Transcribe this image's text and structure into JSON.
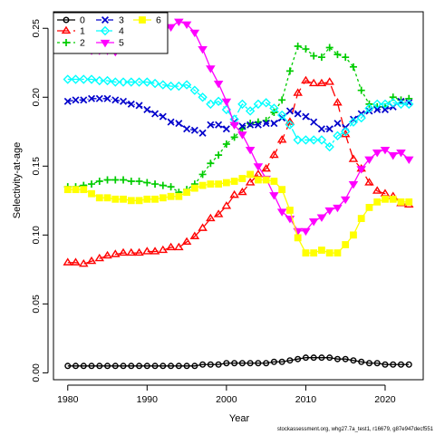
{
  "chart_data": {
    "type": "line",
    "xlabel": "Year",
    "ylabel": "Selectivity-at-age",
    "xlim": [
      1978.2,
      2024.8
    ],
    "ylim": [
      -0.005,
      0.262
    ],
    "xticks": [
      1980,
      1990,
      2000,
      2010,
      2020
    ],
    "yticks": [
      0.0,
      0.05,
      0.1,
      0.15,
      0.2,
      0.25
    ],
    "ytick_labels": [
      "0.00",
      "0.05",
      "0.10",
      "0.15",
      "0.20",
      "0.25"
    ],
    "grid": false,
    "legend_position": "top-left",
    "footnote": "stockassessment.org, whg27.7a_test1, r16679, g87e947decf551",
    "x": [
      1980,
      1981,
      1982,
      1983,
      1984,
      1985,
      1986,
      1987,
      1988,
      1989,
      1990,
      1991,
      1992,
      1993,
      1994,
      1995,
      1996,
      1997,
      1998,
      1999,
      2000,
      2001,
      2002,
      2003,
      2004,
      2005,
      2006,
      2007,
      2008,
      2009,
      2010,
      2011,
      2012,
      2013,
      2014,
      2015,
      2016,
      2017,
      2018,
      2019,
      2020,
      2021,
      2022,
      2023
    ],
    "series": [
      {
        "name": "0",
        "color": "#000000",
        "dash": "",
        "marker": "circle",
        "values": [
          0.005,
          0.005,
          0.005,
          0.005,
          0.005,
          0.005,
          0.005,
          0.005,
          0.005,
          0.005,
          0.005,
          0.005,
          0.005,
          0.005,
          0.005,
          0.005,
          0.005,
          0.006,
          0.006,
          0.006,
          0.007,
          0.007,
          0.007,
          0.007,
          0.007,
          0.007,
          0.008,
          0.008,
          0.009,
          0.01,
          0.011,
          0.011,
          0.011,
          0.011,
          0.01,
          0.01,
          0.009,
          0.008,
          0.007,
          0.007,
          0.006,
          0.006,
          0.006,
          0.006
        ]
      },
      {
        "name": "1",
        "color": "#ff0000",
        "dash": "12,6",
        "marker": "triangle",
        "values": [
          0.08,
          0.08,
          0.079,
          0.081,
          0.083,
          0.085,
          0.086,
          0.087,
          0.087,
          0.087,
          0.088,
          0.088,
          0.089,
          0.091,
          0.091,
          0.095,
          0.099,
          0.105,
          0.112,
          0.115,
          0.121,
          0.129,
          0.131,
          0.138,
          0.144,
          0.148,
          0.158,
          0.169,
          0.182,
          0.203,
          0.212,
          0.21,
          0.21,
          0.211,
          0.196,
          0.173,
          0.155,
          0.148,
          0.138,
          0.132,
          0.13,
          0.128,
          0.123,
          0.122
        ]
      },
      {
        "name": "2",
        "color": "#00cc00",
        "dash": "3,3",
        "marker": "plus",
        "values": [
          0.135,
          0.135,
          0.136,
          0.137,
          0.139,
          0.14,
          0.14,
          0.14,
          0.139,
          0.139,
          0.138,
          0.137,
          0.136,
          0.135,
          0.131,
          0.133,
          0.137,
          0.144,
          0.152,
          0.158,
          0.166,
          0.171,
          0.177,
          0.181,
          0.182,
          0.183,
          0.189,
          0.198,
          0.219,
          0.237,
          0.235,
          0.23,
          0.229,
          0.236,
          0.231,
          0.229,
          0.222,
          0.205,
          0.195,
          0.193,
          0.193,
          0.2,
          0.198,
          0.199
        ]
      },
      {
        "name": "3",
        "color": "#0000cc",
        "dash": "6,3,1,3",
        "marker": "cross",
        "values": [
          0.197,
          0.198,
          0.198,
          0.199,
          0.199,
          0.199,
          0.198,
          0.197,
          0.195,
          0.194,
          0.191,
          0.188,
          0.186,
          0.182,
          0.181,
          0.177,
          0.176,
          0.174,
          0.18,
          0.18,
          0.177,
          0.182,
          0.179,
          0.18,
          0.18,
          0.181,
          0.181,
          0.185,
          0.19,
          0.188,
          0.186,
          0.182,
          0.177,
          0.177,
          0.181,
          0.178,
          0.184,
          0.188,
          0.19,
          0.191,
          0.191,
          0.193,
          0.197,
          0.196
        ]
      },
      {
        "name": "4",
        "color": "#00ffff",
        "dash": "12,3,3,3",
        "marker": "diamond",
        "values": [
          0.213,
          0.213,
          0.213,
          0.213,
          0.212,
          0.212,
          0.211,
          0.211,
          0.211,
          0.211,
          0.211,
          0.21,
          0.209,
          0.208,
          0.208,
          0.209,
          0.205,
          0.2,
          0.195,
          0.197,
          0.191,
          0.184,
          0.195,
          0.19,
          0.195,
          0.196,
          0.192,
          0.187,
          0.18,
          0.169,
          0.169,
          0.169,
          0.169,
          0.164,
          0.172,
          0.175,
          0.182,
          0.185,
          0.192,
          0.195,
          0.195,
          0.196,
          0.195,
          0.195
        ]
      },
      {
        "name": "5",
        "color": "#ff00ff",
        "dash": "",
        "marker": "triangle-down",
        "values": [
          0.236,
          0.235,
          0.235,
          0.234,
          0.234,
          0.234,
          0.233,
          0.235,
          0.237,
          0.238,
          0.24,
          0.246,
          0.249,
          0.251,
          0.255,
          0.253,
          0.247,
          0.235,
          0.221,
          0.21,
          0.197,
          0.18,
          0.173,
          0.162,
          0.15,
          0.141,
          0.129,
          0.117,
          0.112,
          0.103,
          0.103,
          0.11,
          0.113,
          0.118,
          0.12,
          0.126,
          0.137,
          0.148,
          0.155,
          0.16,
          0.162,
          0.158,
          0.16,
          0.155
        ]
      },
      {
        "name": "6",
        "color": "#ffff00",
        "dash": "",
        "marker": "square",
        "values": [
          0.133,
          0.133,
          0.133,
          0.13,
          0.127,
          0.127,
          0.126,
          0.126,
          0.125,
          0.125,
          0.126,
          0.126,
          0.127,
          0.128,
          0.128,
          0.131,
          0.134,
          0.136,
          0.137,
          0.137,
          0.138,
          0.139,
          0.141,
          0.144,
          0.14,
          0.14,
          0.139,
          0.133,
          0.118,
          0.098,
          0.087,
          0.087,
          0.089,
          0.087,
          0.087,
          0.093,
          0.1,
          0.112,
          0.12,
          0.124,
          0.126,
          0.126,
          0.124,
          0.124
        ]
      }
    ]
  }
}
